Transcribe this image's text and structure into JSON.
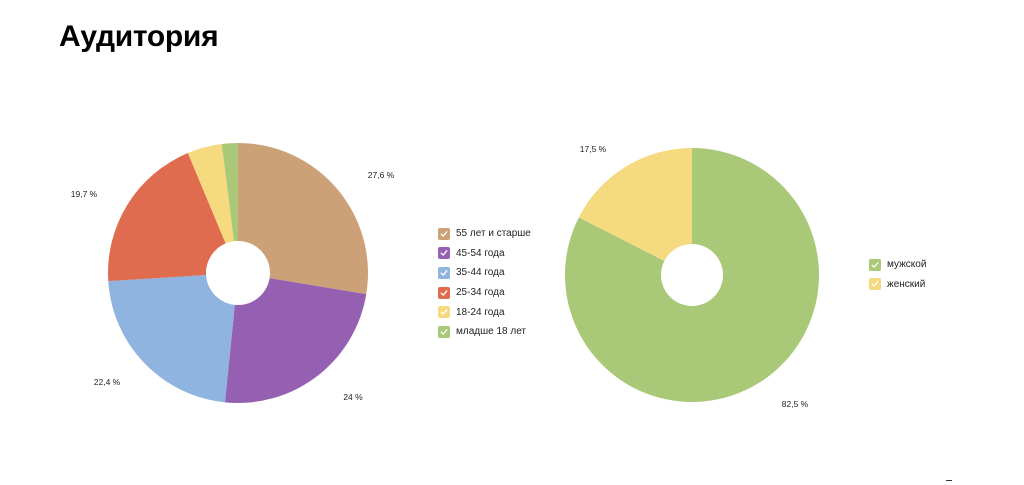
{
  "slide": {
    "title": "Аудитория"
  },
  "chart_data": [
    {
      "type": "pie",
      "donut": true,
      "categories": [
        "55 лет и старше",
        "45-54 года",
        "35-44 года",
        "25-34 года",
        "18-24 года",
        "младше 18 лет"
      ],
      "values": [
        27.6,
        24,
        22.4,
        19.7,
        4.3,
        2.0
      ],
      "value_labels": [
        "27,6 %",
        "24 %",
        "22,4 %",
        "19,7 %",
        "",
        ""
      ],
      "colors": [
        "#CDA177",
        "#9660B2",
        "#8FB4E0",
        "#E06C50",
        "#F6DA80",
        "#A9C979"
      ],
      "legend_position": "right"
    },
    {
      "type": "pie",
      "donut": true,
      "categories": [
        "мужской",
        "женский"
      ],
      "values": [
        82.5,
        17.5
      ],
      "value_labels": [
        "82,5 %",
        "17,5 %"
      ],
      "colors": [
        "#A9C979",
        "#F6DA80"
      ],
      "legend_position": "right"
    }
  ]
}
